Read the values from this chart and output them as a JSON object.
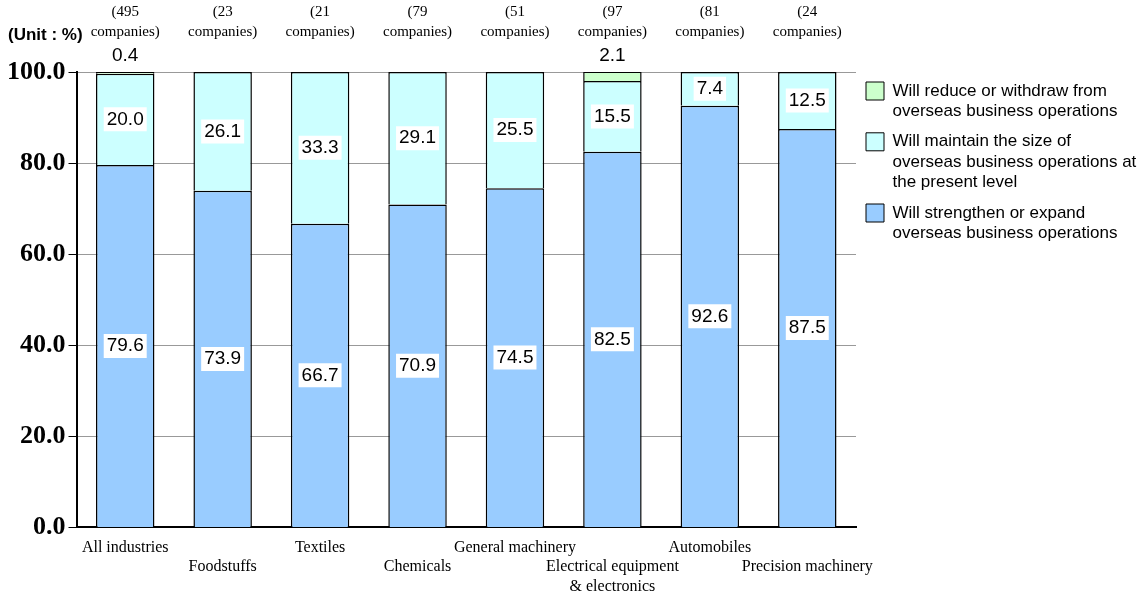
{
  "chart_data": {
    "type": "bar",
    "stacked": true,
    "ylabel": "(Unit : %)",
    "categories": [
      "All industries",
      "Foodstuffs",
      "Textiles",
      "Chemicals",
      "General machinery",
      "Electrical equipment & electronics",
      "Automobiles",
      "Precision machinery"
    ],
    "series": [
      {
        "name": "Will strengthen or expand overseas business operations",
        "color": "#99ccff",
        "values": [
          79.6,
          73.9,
          66.7,
          70.9,
          74.5,
          82.5,
          92.6,
          87.5
        ],
        "value_labels": [
          "79.6",
          "73.9",
          "66.7",
          "70.9",
          "74.5",
          "82.5",
          "92.6",
          "87.5"
        ]
      },
      {
        "name": "Will maintain the size of overseas business operations at the present level",
        "color": "#ccffff",
        "values": [
          20.0,
          26.1,
          33.3,
          29.1,
          25.5,
          15.5,
          7.4,
          12.5
        ],
        "value_labels": [
          "20.0",
          "26.1",
          "33.3",
          "29.1",
          "25.5",
          "15.5",
          "7.4",
          "12.5"
        ]
      },
      {
        "name": "Will reduce or withdraw from overseas business operations",
        "color": "#ccffcc",
        "values": [
          0.4,
          null,
          null,
          null,
          null,
          2.1,
          null,
          null
        ],
        "value_labels": [
          "0.4",
          null,
          null,
          null,
          null,
          "2.1",
          null,
          null
        ]
      }
    ],
    "ylim": [
      0,
      100
    ],
    "yticks": [
      {
        "value": 0,
        "label": "0.0"
      },
      {
        "value": 20,
        "label": "20.0"
      },
      {
        "value": 40,
        "label": "40.0"
      },
      {
        "value": 60,
        "label": "60.0"
      },
      {
        "value": 80,
        "label": "80.0"
      },
      {
        "value": 100,
        "label": "100.0"
      }
    ],
    "grid": "y",
    "legend": "right",
    "annotations": [
      "(495 companies)",
      "(23 companies)",
      "(21 companies)",
      "(79 companies)",
      "(51 companies)",
      "(97 companies)",
      "(81 companies)",
      "(24 companies)"
    ]
  }
}
